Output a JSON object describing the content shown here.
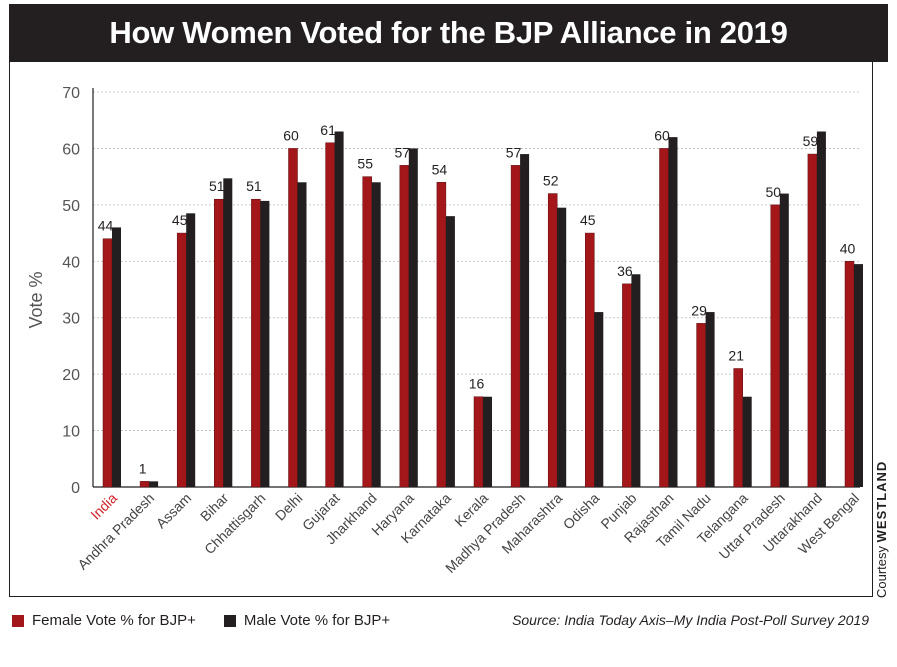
{
  "title": "How Women Voted for the BJP Alliance in 2019",
  "legend": {
    "female_label": "Female Vote % for BJP+",
    "male_label": "Male Vote % for BJP+"
  },
  "source": "Source: India Today Axis–My India Post-Poll Survey 2019",
  "courtesy": {
    "prefix": "Courtesy",
    "brand": "WESTLAND"
  },
  "colors": {
    "female": "#a3161a",
    "male": "#231f20",
    "highlight": "#d2232a",
    "grid": "#b8b8b8",
    "axis_text": "#555555",
    "banner": "#231f20"
  },
  "chart_data": {
    "type": "bar",
    "title": "How Women Voted for the BJP Alliance in 2019",
    "ylabel": "Vote %",
    "xlabel": "",
    "ylim": [
      0,
      70
    ],
    "yticks": [
      0,
      10,
      20,
      30,
      40,
      50,
      60,
      70
    ],
    "grid": true,
    "legend_position": "bottom-left",
    "highlight_category": "India",
    "categories": [
      "India",
      "Andhra Pradesh",
      "Assam",
      "Bihar",
      "Chhattisgarh",
      "Delhi",
      "Gujarat",
      "Jharkhand",
      "Haryana",
      "Karnataka",
      "Kerala",
      "Madhya Pradesh",
      "Maharashtra",
      "Odisha",
      "Punjab",
      "Rajasthan",
      "Tamil Nadu",
      "Telangana",
      "Uttar Pradesh",
      "Uttarakhand",
      "West Bengal"
    ],
    "series": [
      {
        "name": "Female Vote % for BJP+",
        "values": [
          44,
          1,
          45,
          51,
          51,
          60,
          61,
          55,
          57,
          54,
          16,
          57,
          52,
          45,
          36,
          60,
          29,
          21,
          50,
          59,
          40
        ]
      },
      {
        "name": "Male Vote % for BJP+",
        "values": [
          46,
          1,
          48.5,
          54.7,
          50.7,
          54,
          63,
          54,
          60,
          48,
          16,
          59,
          49.5,
          31,
          37.7,
          62,
          31,
          16,
          52,
          63,
          39.5
        ]
      }
    ]
  }
}
